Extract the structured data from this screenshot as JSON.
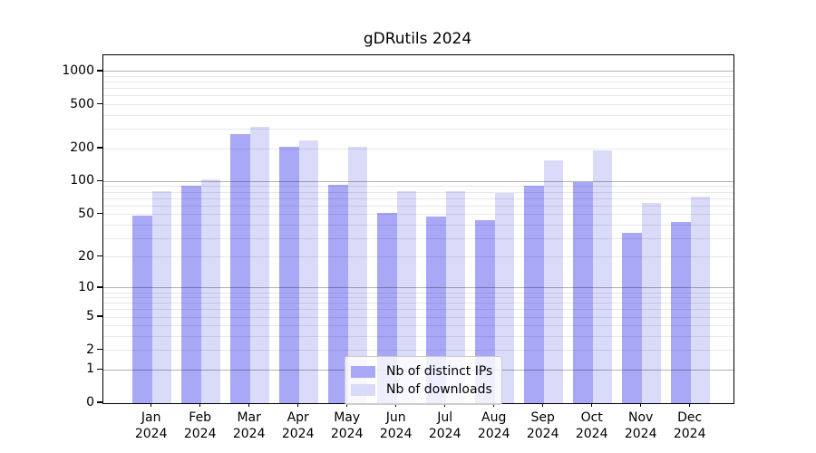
{
  "title": "gDRutils 2024",
  "axes": {
    "y_tick_labels": [
      "1000",
      "500",
      "200",
      "100",
      "50",
      "20",
      "10",
      "5",
      "2",
      "1",
      "0"
    ],
    "x_year": "2024"
  },
  "legend": {
    "items": [
      {
        "label": "Nb of distinct IPs"
      },
      {
        "label": "Nb of downloads"
      }
    ]
  },
  "colors": {
    "distinct_ips": "#a8a8f7",
    "downloads": "#dadaf9",
    "grid_major": "rgba(0,0,0,0.30)",
    "grid_minor": "rgba(0,0,0,0.09)",
    "spine": "#000000"
  },
  "chart_data": {
    "type": "bar",
    "title": "gDRutils 2024",
    "categories": [
      "Jan",
      "Feb",
      "Mar",
      "Apr",
      "May",
      "Jun",
      "Jul",
      "Aug",
      "Sep",
      "Oct",
      "Nov",
      "Dec"
    ],
    "x_year": "2024",
    "series": [
      {
        "name": "Nb of distinct IPs",
        "color": "#a8a8f7",
        "values": [
          49,
          91,
          273,
          208,
          94,
          52,
          48,
          44,
          91,
          99,
          34,
          43
        ]
      },
      {
        "name": "Nb of downloads",
        "color": "#dadaf9",
        "values": [
          82,
          104,
          314,
          239,
          208,
          82,
          82,
          79,
          156,
          193,
          64,
          73
        ]
      }
    ],
    "y_scale": "log10(value+1)",
    "y_tick_values": [
      1000,
      500,
      200,
      100,
      50,
      20,
      10,
      5,
      2,
      1,
      0
    ],
    "ylim": [
      0,
      1400
    ],
    "grid": "horizontal log gridlines, minor lines at 2-9 per decade, drawn over bars",
    "legend_position": "lower center"
  }
}
